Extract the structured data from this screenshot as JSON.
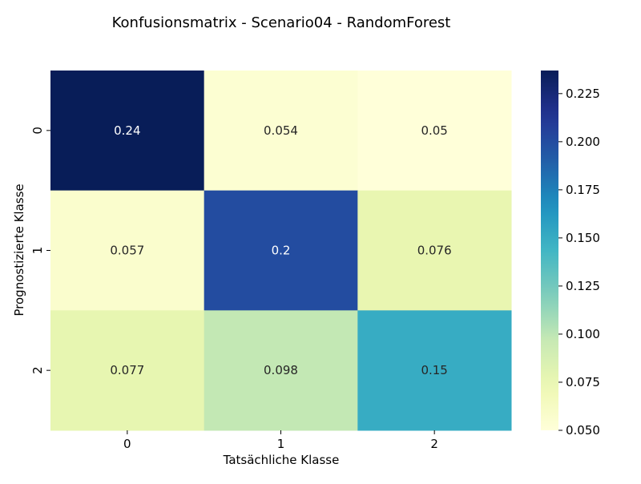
{
  "chart_data": {
    "type": "heatmap",
    "title": "Konfusionsmatrix - Scenario04 - RandomForest",
    "xlabel": "Tatsächliche Klasse",
    "ylabel": "Prognostizierte Klasse",
    "x_categories": [
      "0",
      "1",
      "2"
    ],
    "y_categories": [
      "0",
      "1",
      "2"
    ],
    "values": [
      [
        0.24,
        0.054,
        0.05
      ],
      [
        0.057,
        0.2,
        0.076
      ],
      [
        0.077,
        0.098,
        0.15
      ]
    ],
    "cell_labels": [
      [
        "0.24",
        "0.054",
        "0.05"
      ],
      [
        "0.057",
        "0.2",
        "0.076"
      ],
      [
        "0.077",
        "0.098",
        "0.15"
      ]
    ],
    "colormap": "YlGnBu",
    "colorbar": {
      "vmin": 0.05,
      "vmax": 0.237,
      "ticks": [
        0.05,
        0.075,
        0.1,
        0.125,
        0.15,
        0.175,
        0.2,
        0.225
      ],
      "tick_labels": [
        "0.050",
        "0.075",
        "0.100",
        "0.125",
        "0.150",
        "0.175",
        "0.200",
        "0.225"
      ]
    },
    "grid": false
  }
}
